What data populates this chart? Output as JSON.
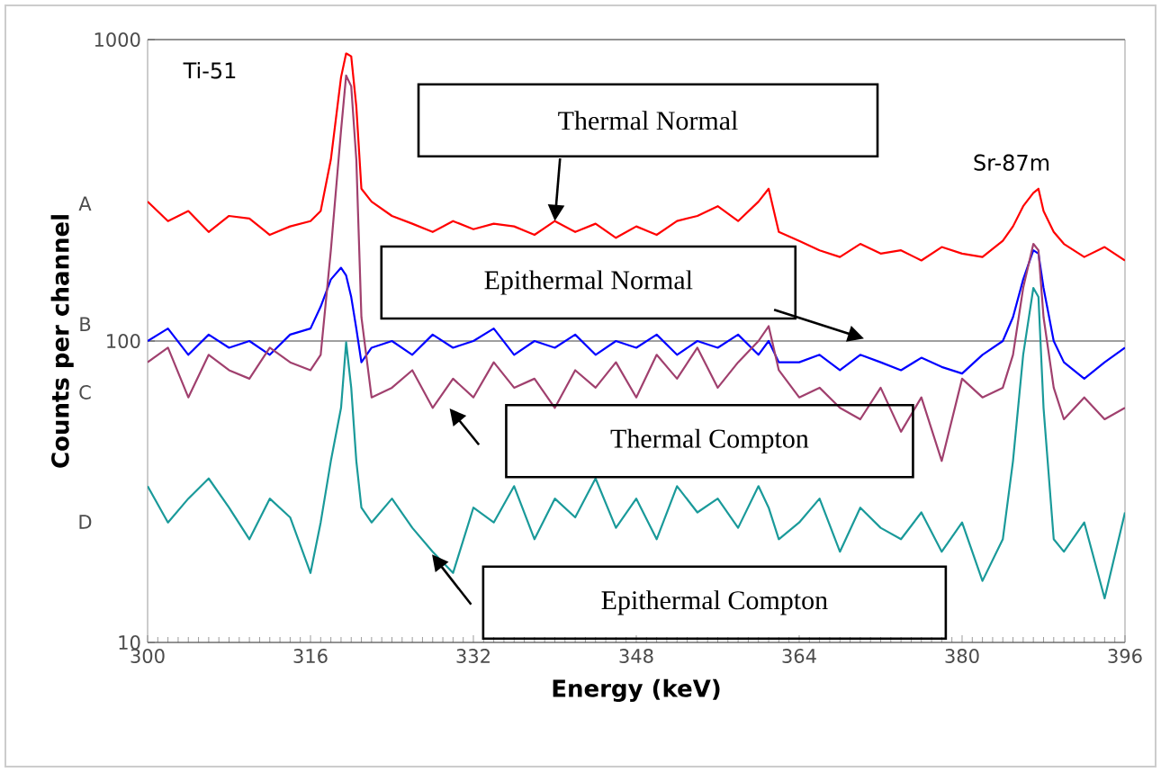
{
  "chart_data": {
    "type": "line",
    "xlabel": "Energy (keV)",
    "ylabel": "Counts per channel",
    "x": [
      300,
      302,
      304,
      306,
      308,
      310,
      312,
      314,
      316,
      317,
      318,
      319,
      319.5,
      320,
      320.5,
      321,
      322,
      324,
      326,
      328,
      330,
      332,
      334,
      336,
      338,
      340,
      342,
      344,
      346,
      348,
      350,
      352,
      354,
      356,
      358,
      360,
      361,
      362,
      364,
      366,
      368,
      370,
      372,
      374,
      376,
      378,
      380,
      382,
      384,
      385,
      386,
      387,
      387.5,
      388,
      389,
      390,
      392,
      394,
      396
    ],
    "series": [
      {
        "color": "#ff0000",
        "values": [
          290,
          250,
          270,
          230,
          260,
          255,
          225,
          240,
          250,
          270,
          400,
          750,
          900,
          880,
          600,
          320,
          290,
          260,
          245,
          230,
          250,
          235,
          245,
          240,
          225,
          250,
          230,
          245,
          220,
          240,
          225,
          250,
          260,
          280,
          250,
          290,
          320,
          230,
          215,
          200,
          190,
          210,
          195,
          200,
          185,
          205,
          195,
          190,
          215,
          240,
          280,
          310,
          320,
          270,
          230,
          210,
          190,
          205,
          185
        ]
      },
      {
        "color": "#0000ff",
        "values": [
          100,
          110,
          90,
          105,
          95,
          100,
          90,
          105,
          110,
          130,
          160,
          175,
          165,
          140,
          110,
          85,
          95,
          100,
          90,
          105,
          95,
          100,
          110,
          90,
          100,
          95,
          105,
          90,
          100,
          95,
          105,
          90,
          100,
          95,
          105,
          90,
          100,
          85,
          85,
          90,
          80,
          90,
          85,
          80,
          88,
          82,
          78,
          90,
          100,
          120,
          160,
          200,
          195,
          150,
          100,
          85,
          75,
          85,
          95
        ]
      },
      {
        "color": "#a0406e",
        "values": [
          85,
          95,
          65,
          90,
          80,
          75,
          95,
          85,
          80,
          90,
          200,
          500,
          760,
          700,
          400,
          120,
          65,
          70,
          80,
          60,
          75,
          65,
          85,
          70,
          75,
          60,
          80,
          70,
          85,
          65,
          90,
          75,
          95,
          70,
          85,
          100,
          112,
          80,
          65,
          70,
          60,
          55,
          70,
          50,
          65,
          40,
          75,
          65,
          70,
          90,
          150,
          210,
          200,
          120,
          70,
          55,
          65,
          55,
          60
        ]
      },
      {
        "color": "#1a9a9a",
        "values": [
          33,
          25,
          30,
          35,
          28,
          22,
          30,
          26,
          17,
          25,
          40,
          60,
          99,
          70,
          40,
          28,
          25,
          30,
          24,
          20,
          17,
          28,
          25,
          33,
          22,
          30,
          26,
          35,
          24,
          30,
          22,
          33,
          27,
          30,
          24,
          33,
          28,
          22,
          25,
          30,
          20,
          28,
          24,
          22,
          27,
          20,
          25,
          16,
          22,
          40,
          90,
          150,
          140,
          60,
          22,
          20,
          25,
          14,
          27
        ]
      }
    ],
    "xlim": [
      300,
      396
    ],
    "xticks": [
      300,
      316,
      332,
      348,
      364,
      380,
      396
    ],
    "ylim": [
      10,
      1000
    ],
    "yticks": [
      10,
      100,
      1000
    ],
    "log": "y",
    "grid": "y",
    "marker": "none",
    "line_style": "solid",
    "annotations": [
      "Ti-51",
      "Sr-87m",
      "A",
      "B",
      "C",
      "D",
      {
        "text": "Thermal Normal",
        "x": 340,
        "y": 250
      },
      "Epithermal Normal",
      "Thermal Compton",
      "Epithermal Compton"
    ]
  }
}
